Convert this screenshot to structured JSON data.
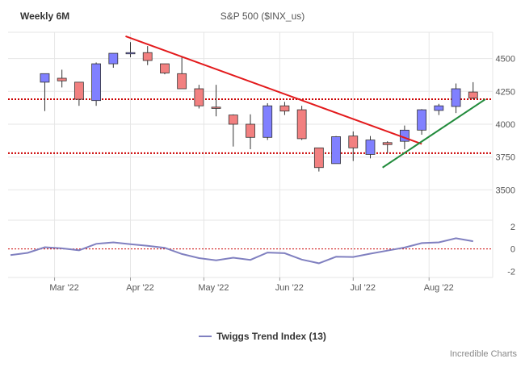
{
  "header": {
    "period_label": "Weekly 6M",
    "symbol_title": "S&P 500 ($INX_us)"
  },
  "legend": {
    "label": "Twiggs Trend Index (13)"
  },
  "branding": {
    "text": "Incredible Charts"
  },
  "colors": {
    "bull": "#8080ff",
    "bear": "#f28080",
    "candle_outline": "#333333",
    "resistance_line": "#e31a1c",
    "support_line": "#228b3c",
    "level_line": "#cc0000",
    "indicator": "#8080c0",
    "grid": "#e6e6e6"
  },
  "chart_data": [
    {
      "type": "candlestick",
      "title": "S&P 500 ($INX_us)",
      "ylim": [
        3300,
        4700
      ],
      "y_ticks": [
        3500,
        3750,
        4000,
        4250,
        4500
      ],
      "y_tick_labels": [
        "3500",
        "3750",
        "4000",
        "4250",
        "4500"
      ],
      "x_tick_labels": [
        "Mar '22",
        "Apr '22",
        "May '22",
        "Jun '22",
        "Jul '22",
        "Aug '22"
      ],
      "x_tick_dates": [
        "2022-03-01",
        "2022-04-01",
        "2022-05-01",
        "2022-06-01",
        "2022-07-01",
        "2022-08-01"
      ],
      "grid": true,
      "candles": [
        {
          "date": "2022-02-25",
          "open": 4320,
          "high": 4380,
          "low": 4100,
          "close": 4385
        },
        {
          "date": "2022-03-04",
          "open": 4350,
          "high": 4415,
          "low": 4280,
          "close": 4330
        },
        {
          "date": "2022-03-11",
          "open": 4320,
          "high": 4320,
          "low": 4140,
          "close": 4190
        },
        {
          "date": "2022-03-18",
          "open": 4180,
          "high": 4470,
          "low": 4140,
          "close": 4460
        },
        {
          "date": "2022-03-25",
          "open": 4460,
          "high": 4540,
          "low": 4430,
          "close": 4540
        },
        {
          "date": "2022-04-01",
          "open": 4540,
          "high": 4625,
          "low": 4510,
          "close": 4545
        },
        {
          "date": "2022-04-08",
          "open": 4545,
          "high": 4595,
          "low": 4450,
          "close": 4485
        },
        {
          "date": "2022-04-15",
          "open": 4460,
          "high": 4460,
          "low": 4380,
          "close": 4390
        },
        {
          "date": "2022-04-22",
          "open": 4385,
          "high": 4510,
          "low": 4270,
          "close": 4270
        },
        {
          "date": "2022-04-29",
          "open": 4270,
          "high": 4300,
          "low": 4120,
          "close": 4140
        },
        {
          "date": "2022-05-06",
          "open": 4130,
          "high": 4300,
          "low": 4060,
          "close": 4120
        },
        {
          "date": "2022-05-13",
          "open": 4070,
          "high": 4075,
          "low": 3830,
          "close": 4000
        },
        {
          "date": "2022-05-20",
          "open": 4000,
          "high": 4075,
          "low": 3810,
          "close": 3900
        },
        {
          "date": "2022-05-27",
          "open": 3900,
          "high": 4160,
          "low": 3880,
          "close": 4140
        },
        {
          "date": "2022-06-03",
          "open": 4140,
          "high": 4170,
          "low": 4070,
          "close": 4100
        },
        {
          "date": "2022-06-10",
          "open": 4110,
          "high": 4140,
          "low": 3880,
          "close": 3890
        },
        {
          "date": "2022-06-17",
          "open": 3820,
          "high": 3820,
          "low": 3640,
          "close": 3670
        },
        {
          "date": "2022-06-24",
          "open": 3700,
          "high": 3910,
          "low": 3700,
          "close": 3905
        },
        {
          "date": "2022-07-01",
          "open": 3910,
          "high": 3945,
          "low": 3720,
          "close": 3820
        },
        {
          "date": "2022-07-08",
          "open": 3770,
          "high": 3910,
          "low": 3740,
          "close": 3880
        },
        {
          "date": "2022-07-15",
          "open": 3860,
          "high": 3870,
          "low": 3780,
          "close": 3845
        },
        {
          "date": "2022-07-22",
          "open": 3870,
          "high": 3990,
          "low": 3810,
          "close": 3955
        },
        {
          "date": "2022-07-29",
          "open": 3955,
          "high": 4115,
          "low": 3920,
          "close": 4110
        },
        {
          "date": "2022-08-05",
          "open": 4105,
          "high": 4155,
          "low": 4070,
          "close": 4140
        },
        {
          "date": "2022-08-12",
          "open": 4135,
          "high": 4310,
          "low": 4085,
          "close": 4270
        },
        {
          "date": "2022-08-19",
          "open": 4245,
          "high": 4320,
          "low": 4190,
          "close": 4200
        }
      ],
      "horizontal_levels": [
        4190,
        3780
      ],
      "trendlines": [
        {
          "name": "resistance",
          "from": {
            "date": "2022-03-30",
            "value": 4670
          },
          "to": {
            "date": "2022-07-29",
            "value": 3850
          }
        },
        {
          "name": "support",
          "from": {
            "date": "2022-07-13",
            "value": 3670
          },
          "to": {
            "date": "2022-08-24",
            "value": 4190
          }
        }
      ]
    },
    {
      "type": "line",
      "title": "",
      "series_name": "Twiggs Trend Index (13)",
      "ylim": [
        -2.4,
        2.2
      ],
      "y_ticks": [
        -2,
        0,
        2
      ],
      "y_tick_labels": [
        "-2",
        "0",
        "2"
      ],
      "zero_line": true,
      "x": [
        "2022-02-11",
        "2022-02-18",
        "2022-02-25",
        "2022-03-04",
        "2022-03-11",
        "2022-03-18",
        "2022-03-25",
        "2022-04-01",
        "2022-04-08",
        "2022-04-15",
        "2022-04-22",
        "2022-04-29",
        "2022-05-06",
        "2022-05-13",
        "2022-05-20",
        "2022-05-27",
        "2022-06-03",
        "2022-06-10",
        "2022-06-17",
        "2022-06-24",
        "2022-07-01",
        "2022-07-08",
        "2022-07-15",
        "2022-07-22",
        "2022-07-29",
        "2022-08-05",
        "2022-08-12",
        "2022-08-19"
      ],
      "values": [
        -0.55,
        -0.35,
        0.15,
        0.05,
        -0.12,
        0.45,
        0.58,
        0.42,
        0.28,
        0.1,
        -0.45,
        -0.82,
        -1.02,
        -0.78,
        -0.98,
        -0.32,
        -0.38,
        -0.95,
        -1.28,
        -0.7,
        -0.72,
        -0.42,
        -0.15,
        0.12,
        0.52,
        0.58,
        0.95,
        0.68
      ]
    }
  ]
}
